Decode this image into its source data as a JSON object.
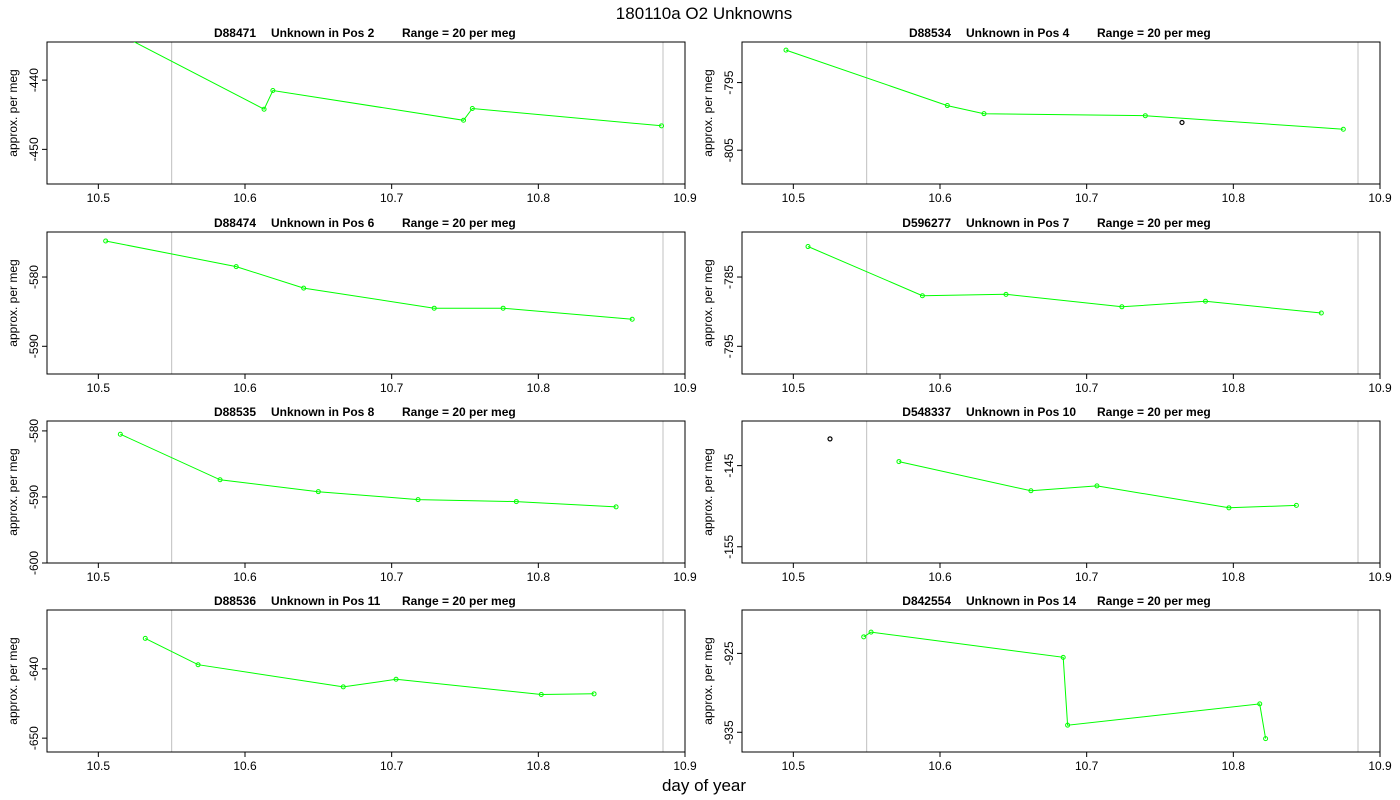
{
  "figure": {
    "title": "180110a  O2 Unknowns",
    "xlabel": "day of year",
    "ylabel": "approx. per meg"
  },
  "colors": {
    "series": "#00ff00",
    "flagged": "#000000",
    "reference_lines": "#c0c0c0",
    "frame": "#000000"
  },
  "chart_data": [
    {
      "type": "line",
      "id_label": "D88471",
      "pos_label": "Unknown in Pos 2",
      "range_label": "Range = 20 per meg",
      "xlim": [
        10.465,
        10.9
      ],
      "ylim": [
        -455,
        -434.5
      ],
      "xticks": [
        "10.5",
        "10.6",
        "10.7",
        "10.8",
        "10.9"
      ],
      "yticks": [
        "-440",
        "-450"
      ],
      "vlines": [
        10.55,
        10.885
      ],
      "series": [
        {
          "x": [
            10.52,
            10.613,
            10.619,
            10.749,
            10.755,
            10.884
          ],
          "y": [
            -434,
            -444.2,
            -441.5,
            -445.8,
            -444.1,
            -446.6
          ]
        }
      ],
      "flagged": []
    },
    {
      "type": "line",
      "id_label": "D88534",
      "pos_label": "Unknown in Pos 4",
      "range_label": "Range = 20 per meg",
      "xlim": [
        10.465,
        10.9
      ],
      "ylim": [
        -810,
        -789
      ],
      "xticks": [
        "10.5",
        "10.6",
        "10.7",
        "10.8",
        "10.9"
      ],
      "yticks": [
        "-795",
        "-805"
      ],
      "vlines": [
        10.55,
        10.885
      ],
      "series": [
        {
          "x": [
            10.495,
            10.605,
            10.63,
            10.74,
            10.875
          ],
          "y": [
            -790.2,
            -798.4,
            -799.6,
            -799.9,
            -801.9
          ]
        }
      ],
      "flagged": [
        {
          "x": 10.765,
          "y": -800.9
        }
      ]
    },
    {
      "type": "line",
      "id_label": "D88474",
      "pos_label": "Unknown in Pos 6",
      "range_label": "Range = 20 per meg",
      "xlim": [
        10.465,
        10.9
      ],
      "ylim": [
        -594,
        -573.5
      ],
      "xticks": [
        "10.5",
        "10.6",
        "10.7",
        "10.8",
        "10.9"
      ],
      "yticks": [
        "-580",
        "-590"
      ],
      "vlines": [
        10.55,
        10.885
      ],
      "series": [
        {
          "x": [
            10.505,
            10.594,
            10.64,
            10.729,
            10.776,
            10.864
          ],
          "y": [
            -574.8,
            -578.5,
            -581.6,
            -584.5,
            -584.5,
            -586.1
          ]
        }
      ],
      "flagged": []
    },
    {
      "type": "line",
      "id_label": "D596277",
      "pos_label": "Unknown in Pos 7",
      "range_label": "Range = 20 per meg",
      "xlim": [
        10.465,
        10.9
      ],
      "ylim": [
        -799,
        -778.5
      ],
      "xticks": [
        "10.5",
        "10.6",
        "10.7",
        "10.8",
        "10.9"
      ],
      "yticks": [
        "-785",
        "-795"
      ],
      "vlines": [
        10.55,
        10.885
      ],
      "series": [
        {
          "x": [
            10.51,
            10.588,
            10.645,
            10.724,
            10.781,
            10.86
          ],
          "y": [
            -780.6,
            -787.7,
            -787.5,
            -789.3,
            -788.5,
            -790.2
          ]
        }
      ],
      "flagged": []
    },
    {
      "type": "line",
      "id_label": "D88535",
      "pos_label": "Unknown in Pos 8",
      "range_label": "Range = 20 per meg",
      "xlim": [
        10.465,
        10.9
      ],
      "ylim": [
        -600,
        -578.5
      ],
      "xticks": [
        "10.5",
        "10.6",
        "10.7",
        "10.8",
        "10.9"
      ],
      "yticks": [
        "-580",
        "-590",
        "-600"
      ],
      "vlines": [
        10.55,
        10.885
      ],
      "series": [
        {
          "x": [
            10.515,
            10.583,
            10.65,
            10.718,
            10.785,
            10.853
          ],
          "y": [
            -580.5,
            -587.4,
            -589.2,
            -590.4,
            -590.7,
            -591.5
          ]
        }
      ],
      "flagged": []
    },
    {
      "type": "line",
      "id_label": "D548337",
      "pos_label": "Unknown in Pos 10",
      "range_label": "Range = 20 per meg",
      "xlim": [
        10.465,
        10.9
      ],
      "ylim": [
        -157,
        -139.5
      ],
      "xticks": [
        "10.5",
        "10.6",
        "10.7",
        "10.8",
        "10.9"
      ],
      "yticks": [
        "-145",
        "-155"
      ],
      "vlines": [
        10.55,
        10.885
      ],
      "series": [
        {
          "x": [
            10.572,
            10.662,
            10.707,
            10.797,
            10.843
          ],
          "y": [
            -144.5,
            -148.1,
            -147.5,
            -150.2,
            -149.9
          ]
        }
      ],
      "flagged": [
        {
          "x": 10.525,
          "y": -141.7
        }
      ]
    },
    {
      "type": "line",
      "id_label": "D88536",
      "pos_label": "Unknown in Pos 11",
      "range_label": "Range = 20 per meg",
      "xlim": [
        10.465,
        10.9
      ],
      "ylim": [
        -652,
        -631.5
      ],
      "xticks": [
        "10.5",
        "10.6",
        "10.7",
        "10.8",
        "10.9"
      ],
      "yticks": [
        "-640",
        "-650"
      ],
      "vlines": [
        10.55,
        10.885
      ],
      "series": [
        {
          "x": [
            10.532,
            10.568,
            10.667,
            10.703,
            10.802,
            10.838
          ],
          "y": [
            -635.6,
            -639.4,
            -642.6,
            -641.5,
            -643.7,
            -643.6
          ]
        }
      ],
      "flagged": []
    },
    {
      "type": "line",
      "id_label": "D842554",
      "pos_label": "Unknown in Pos 14",
      "range_label": "Range = 20 per meg",
      "xlim": [
        10.465,
        10.9
      ],
      "ylim": [
        -937.5,
        -919.5
      ],
      "xticks": [
        "10.5",
        "10.6",
        "10.7",
        "10.8",
        "10.9"
      ],
      "yticks": [
        "-925",
        "-935"
      ],
      "vlines": [
        10.55,
        10.885
      ],
      "series": [
        {
          "x": [
            10.548,
            10.553,
            10.684,
            10.687,
            10.818,
            10.822
          ],
          "y": [
            -922.9,
            -922.3,
            -925.5,
            -934.1,
            -931.4,
            -935.8
          ]
        }
      ],
      "flagged": []
    }
  ]
}
